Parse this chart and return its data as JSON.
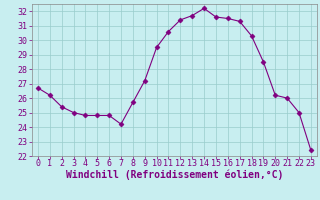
{
  "x": [
    0,
    1,
    2,
    3,
    4,
    5,
    6,
    7,
    8,
    9,
    10,
    11,
    12,
    13,
    14,
    15,
    16,
    17,
    18,
    19,
    20,
    21,
    22,
    23
  ],
  "y": [
    26.7,
    26.2,
    25.4,
    25.0,
    24.8,
    24.8,
    24.8,
    24.2,
    25.7,
    27.2,
    29.5,
    30.6,
    31.4,
    31.7,
    32.2,
    31.6,
    31.5,
    31.3,
    30.3,
    28.5,
    26.2,
    26.0,
    25.0,
    22.4
  ],
  "line_color": "#800080",
  "marker": "D",
  "marker_size": 2.5,
  "bg_color": "#c8eef0",
  "grid_color": "#99cccc",
  "xlabel": "Windchill (Refroidissement éolien,°C)",
  "xlim": [
    -0.5,
    23.5
  ],
  "ylim": [
    22,
    32.5
  ],
  "xticks": [
    0,
    1,
    2,
    3,
    4,
    5,
    6,
    7,
    8,
    9,
    10,
    11,
    12,
    13,
    14,
    15,
    16,
    17,
    18,
    19,
    20,
    21,
    22,
    23
  ],
  "yticks": [
    22,
    23,
    24,
    25,
    26,
    27,
    28,
    29,
    30,
    31,
    32
  ],
  "xlabel_fontsize": 7,
  "tick_fontsize": 6
}
